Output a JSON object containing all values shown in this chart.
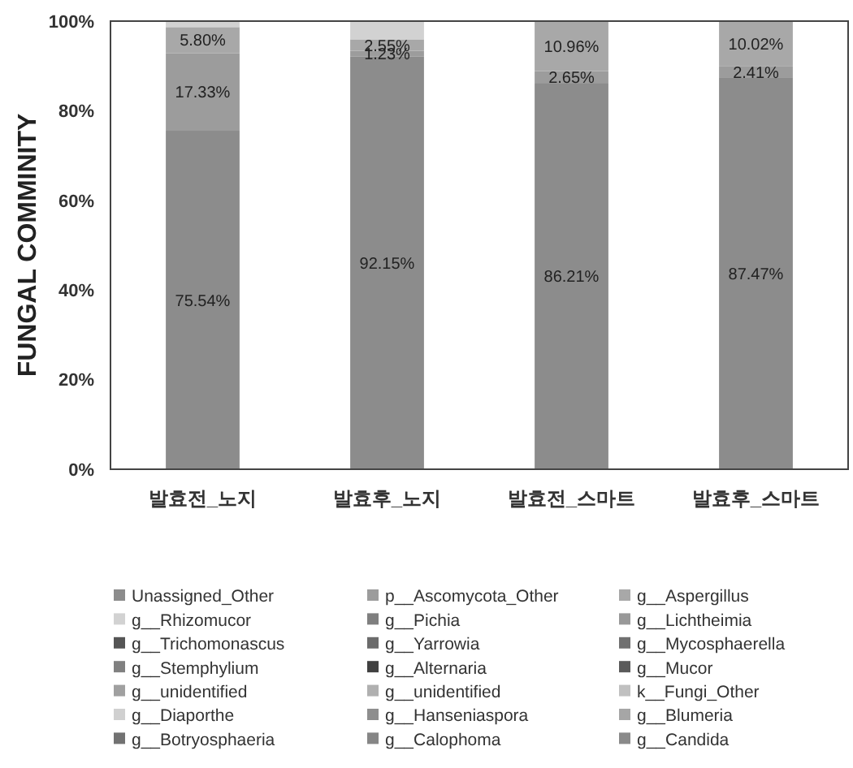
{
  "chart_data": {
    "type": "bar",
    "stacked": true,
    "ylabel": "FUNGAL COMMINITY",
    "categories": [
      "발효전_노지",
      "발효후_노지",
      "발효전_스마트",
      "발효후_스마트"
    ],
    "ylim": [
      0,
      100
    ],
    "yticks": [
      {
        "value": 0,
        "label": "0%"
      },
      {
        "value": 20,
        "label": "20%"
      },
      {
        "value": 40,
        "label": "40%"
      },
      {
        "value": 60,
        "label": "60%"
      },
      {
        "value": 80,
        "label": "80%"
      },
      {
        "value": 100,
        "label": "100%"
      }
    ],
    "grid": false,
    "legend": "bottom",
    "series": [
      {
        "name": "Unassigned_Other",
        "color": "#8c8c8c",
        "values": [
          75.54,
          92.15,
          86.21,
          87.47
        ],
        "value_labels": [
          "75.54%",
          "92.15%",
          "86.21%",
          "87.47%"
        ]
      },
      {
        "name": "p__Ascomycota_Other",
        "color": "#9c9c9c",
        "values": [
          17.33,
          1.23,
          2.65,
          2.41
        ],
        "value_labels": [
          "17.33%",
          "1.23%",
          "2.65%",
          "2.41%"
        ]
      },
      {
        "name": "g__Aspergillus",
        "color": "#a8a8a8",
        "values": [
          5.8,
          2.55,
          10.96,
          10.02
        ],
        "value_labels": [
          "5.80%",
          "2.55%",
          "10.96%",
          "10.02%"
        ]
      },
      {
        "name": "g__Rhizomucor",
        "color": "#d2d2d2",
        "values": [
          1.3,
          4.1,
          null,
          null
        ]
      },
      {
        "name": "g__Pichia",
        "color": "#7f7f7f",
        "values": [
          null,
          null,
          null,
          null
        ]
      },
      {
        "name": "g__Lichtheimia",
        "color": "#999999",
        "values": [
          null,
          null,
          null,
          null
        ]
      },
      {
        "name": "g__Trichomonascus",
        "color": "#555555",
        "values": [
          null,
          null,
          null,
          null
        ]
      },
      {
        "name": "g__Yarrowia",
        "color": "#6b6b6b",
        "values": [
          null,
          null,
          null,
          null
        ]
      },
      {
        "name": "g__Mycosphaerella",
        "color": "#707070",
        "values": [
          null,
          null,
          null,
          null
        ]
      },
      {
        "name": "g__Stemphylium",
        "color": "#808080",
        "values": [
          null,
          null,
          null,
          null
        ]
      },
      {
        "name": "g__Alternaria",
        "color": "#404040",
        "values": [
          null,
          null,
          null,
          null
        ]
      },
      {
        "name": "g__Mucor",
        "color": "#5a5a5a",
        "values": [
          null,
          null,
          null,
          null
        ]
      },
      {
        "name": "g__unidentified",
        "color": "#a0a0a0",
        "values": [
          null,
          null,
          null,
          null
        ]
      },
      {
        "name": "g__unidentified",
        "color": "#b0b0b0",
        "values": [
          null,
          null,
          null,
          null
        ]
      },
      {
        "name": "k__Fungi_Other",
        "color": "#c0c0c0",
        "values": [
          null,
          null,
          null,
          null
        ]
      },
      {
        "name": "g__Diaporthe",
        "color": "#d0d0d0",
        "values": [
          null,
          null,
          null,
          null
        ]
      },
      {
        "name": "g__Hanseniaspora",
        "color": "#8e8e8e",
        "values": [
          null,
          null,
          null,
          null
        ]
      },
      {
        "name": "g__Blumeria",
        "color": "#a6a6a6",
        "values": [
          null,
          null,
          null,
          null
        ]
      },
      {
        "name": "g__Botryosphaeria",
        "color": "#727272",
        "values": [
          null,
          null,
          null,
          null
        ]
      },
      {
        "name": "g__Calophoma",
        "color": "#868686",
        "values": [
          null,
          null,
          null,
          null
        ]
      },
      {
        "name": "g__Candida",
        "color": "#8a8a8a",
        "values": [
          null,
          null,
          null,
          null
        ]
      }
    ]
  }
}
